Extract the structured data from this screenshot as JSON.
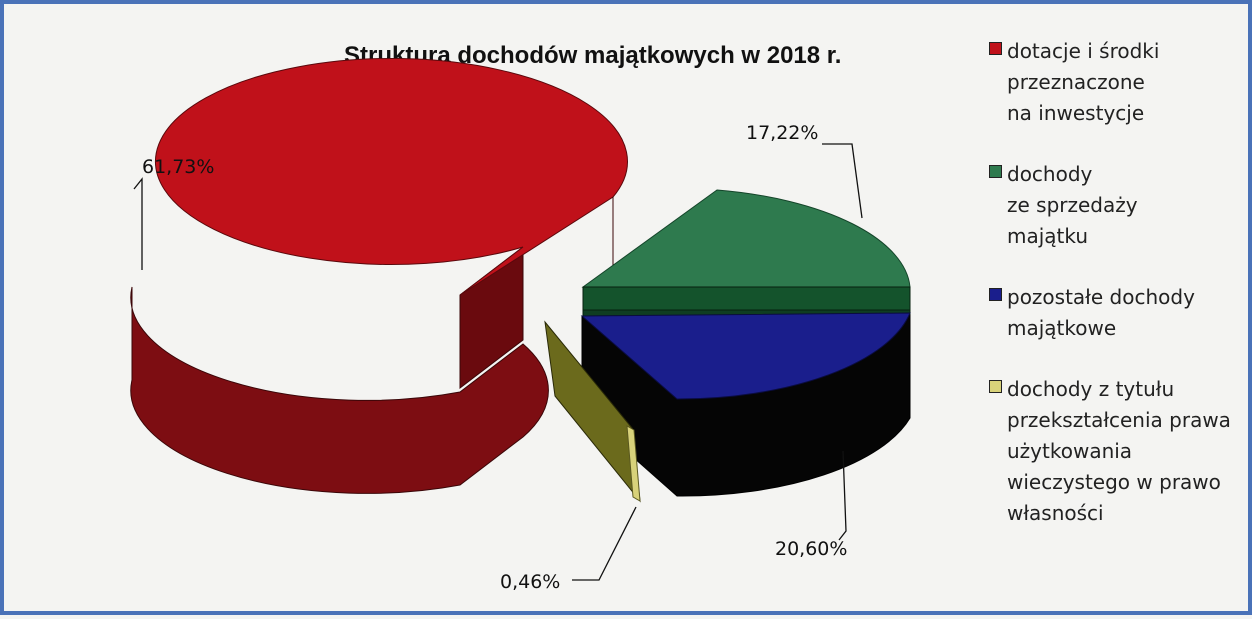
{
  "chart_data": {
    "type": "pie",
    "title": "Struktura dochodów majątkowych w 2018 r.",
    "slices": [
      {
        "label": "dotacje i środki\nprzeznaczone\nna inwestycje",
        "value": 61.73,
        "display": "61,73%",
        "color": "#c0111a"
      },
      {
        "label": "dochody\nze sprzedaży\nmajątku",
        "value": 17.22,
        "display": "17,22%",
        "color": "#2e7a4e"
      },
      {
        "label": "pozostałe dochody\nmajątkowe",
        "value": 20.6,
        "display": "20,60%",
        "color": "#1a1e8c"
      },
      {
        "label": "dochody z tytułu\nprzekształcenia prawa\nużytkowania\nwieczystego w prawo\nwłasności",
        "value": 0.46,
        "display": "0,46%",
        "color": "#d8d27a"
      }
    ],
    "legend_position": "right",
    "style": "3d-exploded"
  }
}
